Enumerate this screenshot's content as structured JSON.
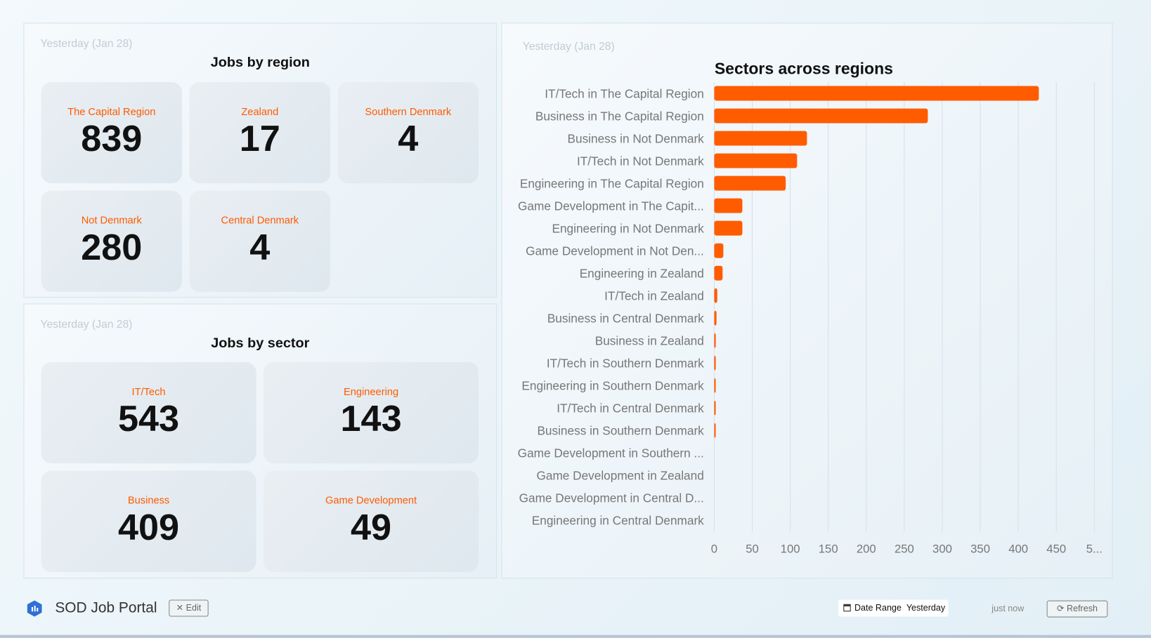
{
  "region_panel": {
    "date": "Yesterday (Jan 28)",
    "title": "Jobs by region",
    "items": [
      {
        "label": "The Capital Region",
        "value": "839"
      },
      {
        "label": "Zealand",
        "value": "17"
      },
      {
        "label": "Southern Denmark",
        "value": "4"
      },
      {
        "label": "Not Denmark",
        "value": "280"
      },
      {
        "label": "Central Denmark",
        "value": "4"
      }
    ]
  },
  "sector_panel": {
    "date": "Yesterday (Jan 28)",
    "title": "Jobs by sector",
    "items": [
      {
        "label": "IT/Tech",
        "value": "543"
      },
      {
        "label": "Engineering",
        "value": "143"
      },
      {
        "label": "Business",
        "value": "409"
      },
      {
        "label": "Game Development",
        "value": "49"
      }
    ]
  },
  "chart_panel": {
    "date": "Yesterday (Jan 28)"
  },
  "chart_data": {
    "type": "bar",
    "orientation": "horizontal",
    "title": "Sectors across regions",
    "bar_color": "#ff5c00",
    "categories": [
      "IT/Tech in The Capital Region",
      "Business in The Capital Region",
      "Business in Not Denmark",
      "IT/Tech in Not Denmark",
      "Engineering in The Capital Region",
      "Game Development in The Capit...",
      "Engineering in Not Denmark",
      "Game Development in Not Den...",
      "Engineering in Zealand",
      "IT/Tech in Zealand",
      "Business in Central Denmark",
      "Business in Zealand",
      "IT/Tech in Southern Denmark",
      "Engineering in Southern Denmark",
      "IT/Tech in Central Denmark",
      "Business in Southern Denmark",
      "Game Development in Southern ...",
      "Game Development in Zealand",
      "Game Development in Central D...",
      "Engineering in Central Denmark"
    ],
    "values": [
      427,
      281,
      122,
      109,
      94,
      37,
      37,
      12,
      11,
      4,
      3,
      2,
      2,
      1,
      1,
      1,
      0,
      0,
      0,
      0
    ],
    "xlim": [
      0,
      500
    ],
    "xticks": [
      "0",
      "50",
      "100",
      "150",
      "200",
      "250",
      "300",
      "350",
      "400",
      "450",
      "5..."
    ],
    "grid": true
  },
  "footer": {
    "app_title": "SOD Job Portal",
    "edit_label": "Edit",
    "date_range_label": "Date Range",
    "date_range_value": "Yesterday",
    "updated": "just now",
    "refresh_label": "Refresh"
  }
}
